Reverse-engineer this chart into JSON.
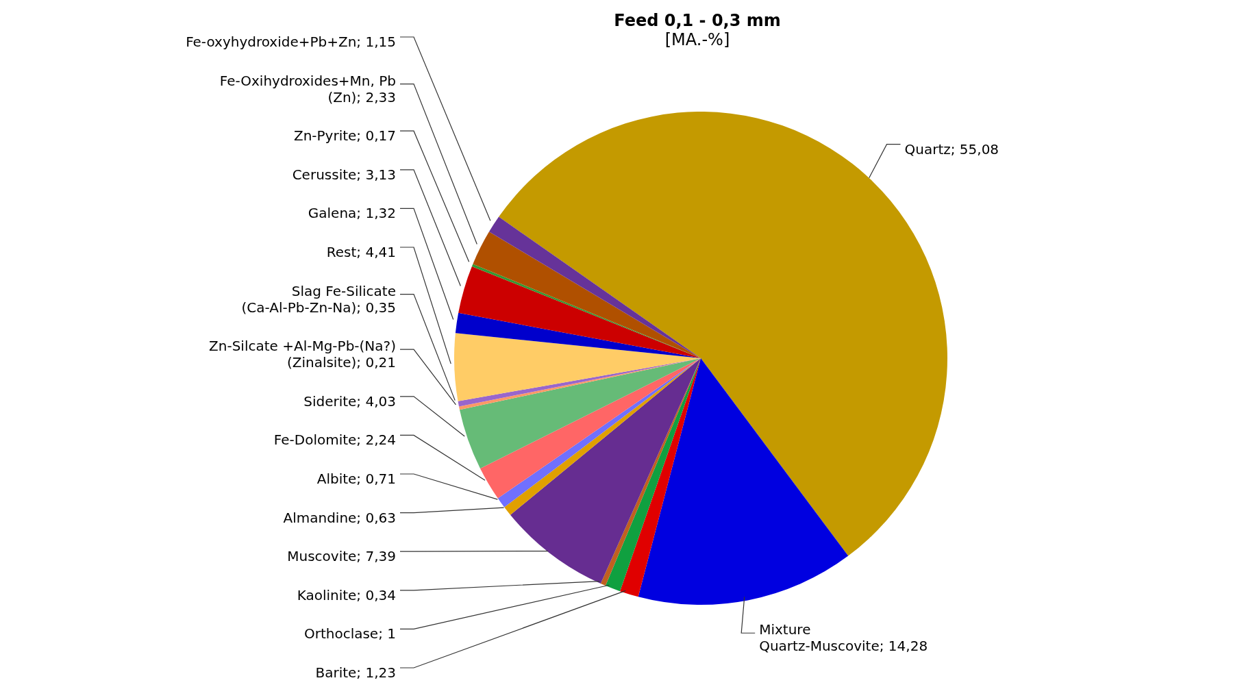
{
  "chart_data": {
    "type": "pie",
    "title": "Feed 0,1 - 0,3 mm",
    "subtitle": "[MA.-%]",
    "categories": [
      "Quartz",
      "Mixture Quartz-Muscovite",
      "Barite",
      "Orthoclase",
      "Kaolinite",
      "Muscovite",
      "Almandine",
      "Albite",
      "Fe-Dolomite",
      "Siderite",
      "Zn-Silcate +Al-Mg-Pb-(Na?) (Zinalsite)",
      "Slag Fe-Silicate (Ca-Al-Pb-Zn-Na)",
      "Rest",
      "Galena",
      "Cerussite",
      "Zn-Pyrite",
      "Fe-Oxihydroxides+Mn, Pb (Zn)",
      "Fe-oxyhydroxide+Pb+Zn"
    ],
    "values": [
      55.08,
      14.28,
      1.23,
      1,
      0.34,
      7.39,
      0.63,
      0.71,
      2.24,
      4.03,
      0.21,
      0.35,
      4.41,
      1.32,
      3.13,
      0.17,
      2.33,
      1.15
    ],
    "value_labels": [
      "55,08",
      "14,28",
      "1,23",
      "1",
      "0,34",
      "7,39",
      "0,63",
      "0,71",
      "2,24",
      "4,03",
      "0,21",
      "0,35",
      "4,41",
      "1,32",
      "3,13",
      "0,17",
      "2,33",
      "1,15"
    ],
    "colors": [
      "#c49a00",
      "#0000e0",
      "#e00000",
      "#10a040",
      "#c06020",
      "#662d91",
      "#e0a000",
      "#7070ff",
      "#ff6666",
      "#66bb77",
      "#ff9966",
      "#9966cc",
      "#ffcc66",
      "#0000cc",
      "#cc0000",
      "#339933",
      "#b05000",
      "#663399"
    ],
    "legend": false
  }
}
